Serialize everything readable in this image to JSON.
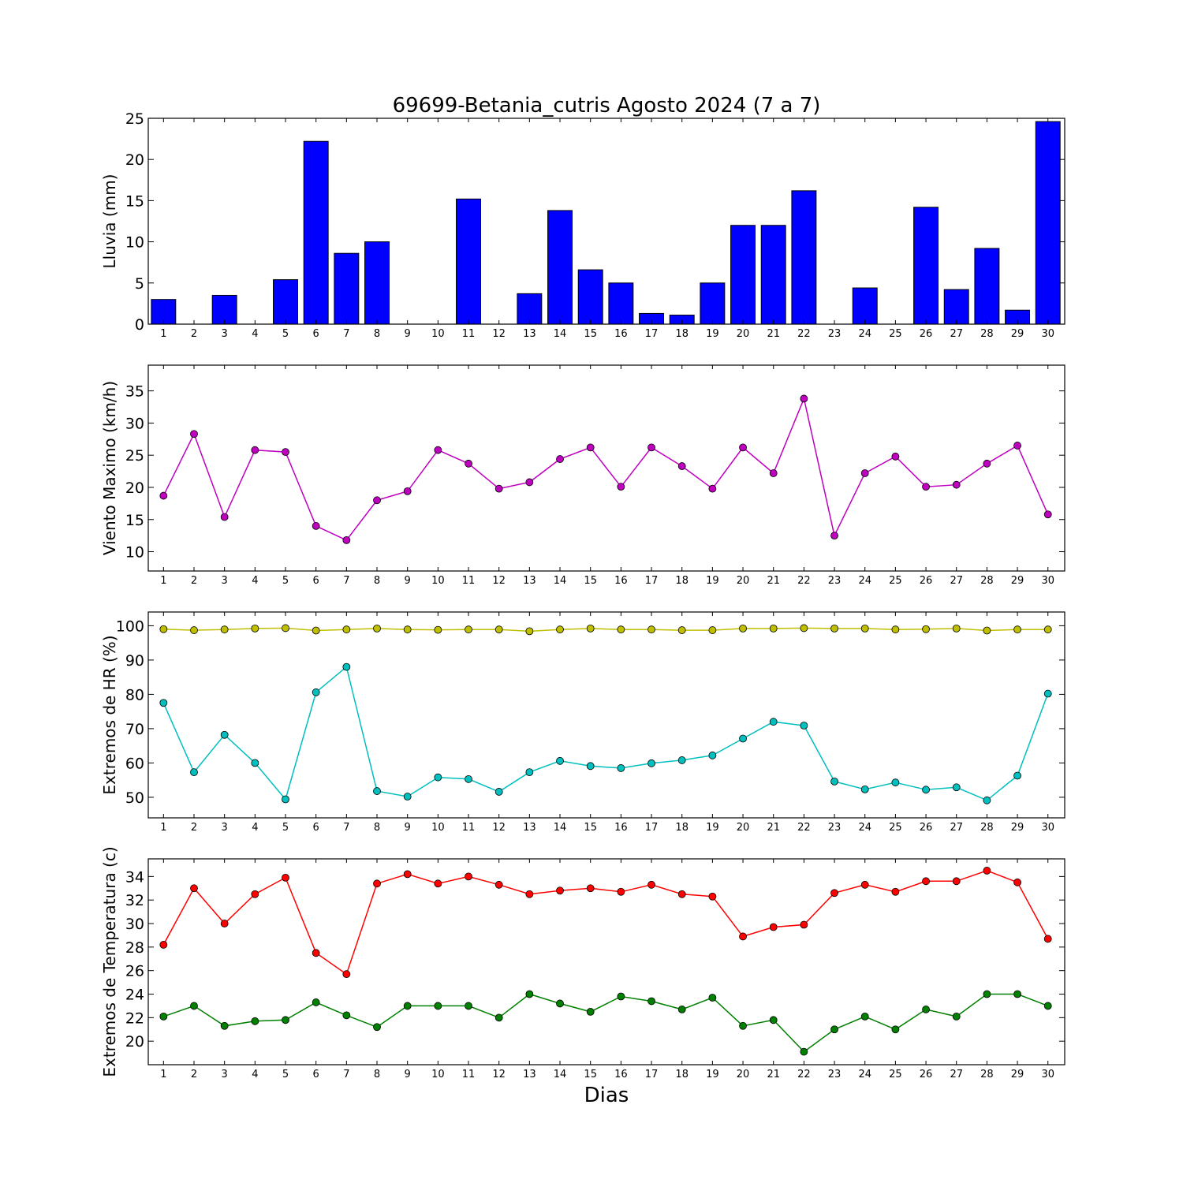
{
  "figure": {
    "title": "69699-Betania_cutris Agosto 2024  (7 a 7)",
    "xlabel": "Dias"
  },
  "chart_data": [
    {
      "type": "bar",
      "ylabel": "Lluvia (mm)",
      "x": [
        1,
        2,
        3,
        4,
        5,
        6,
        7,
        8,
        9,
        10,
        11,
        12,
        13,
        14,
        15,
        16,
        17,
        18,
        19,
        20,
        21,
        22,
        23,
        24,
        25,
        26,
        27,
        28,
        29,
        30
      ],
      "ylim": [
        0,
        25
      ],
      "yticks": [
        0,
        5,
        10,
        15,
        20,
        25
      ],
      "series": [
        {
          "color": "#0000ff",
          "values": [
            3.0,
            0,
            3.5,
            0,
            5.4,
            22.2,
            8.6,
            10.0,
            0,
            0,
            15.2,
            0,
            3.7,
            13.8,
            6.6,
            5.0,
            1.3,
            1.1,
            5.0,
            12.0,
            12.0,
            16.2,
            0,
            4.4,
            0,
            14.2,
            4.2,
            9.2,
            1.7,
            24.6
          ]
        }
      ]
    },
    {
      "type": "line",
      "ylabel": "Viento Maximo (km/h)",
      "x": [
        1,
        2,
        3,
        4,
        5,
        6,
        7,
        8,
        9,
        10,
        11,
        12,
        13,
        14,
        15,
        16,
        17,
        18,
        19,
        20,
        21,
        22,
        23,
        24,
        25,
        26,
        27,
        28,
        29,
        30
      ],
      "ylim": [
        7,
        39
      ],
      "yticks": [
        10,
        15,
        20,
        25,
        30,
        35
      ],
      "series": [
        {
          "color": "#bf00bf",
          "values": [
            18.7,
            28.3,
            15.4,
            25.8,
            25.5,
            14.0,
            11.8,
            18.0,
            19.4,
            25.8,
            23.7,
            19.8,
            20.8,
            24.4,
            26.2,
            20.1,
            26.2,
            23.3,
            19.8,
            26.2,
            22.2,
            33.8,
            12.5,
            22.2,
            24.8,
            20.1,
            20.4,
            23.7,
            26.5,
            15.8
          ]
        }
      ]
    },
    {
      "type": "line",
      "ylabel": "Extremos de HR (%)",
      "x": [
        1,
        2,
        3,
        4,
        5,
        6,
        7,
        8,
        9,
        10,
        11,
        12,
        13,
        14,
        15,
        16,
        17,
        18,
        19,
        20,
        21,
        22,
        23,
        24,
        25,
        26,
        27,
        28,
        29,
        30
      ],
      "ylim": [
        44,
        104
      ],
      "yticks": [
        50,
        60,
        70,
        80,
        90,
        100
      ],
      "series": [
        {
          "color": "#bfbf00",
          "values": [
            99.0,
            98.7,
            98.9,
            99.2,
            99.3,
            98.6,
            98.9,
            99.2,
            98.9,
            98.8,
            98.9,
            98.9,
            98.4,
            98.9,
            99.2,
            98.9,
            98.9,
            98.7,
            98.7,
            99.2,
            99.2,
            99.3,
            99.2,
            99.2,
            98.9,
            99.0,
            99.2,
            98.6,
            98.9,
            98.9
          ]
        },
        {
          "color": "#00bfbf",
          "values": [
            77.5,
            57.3,
            68.2,
            60.0,
            49.4,
            80.6,
            88.0,
            51.8,
            50.2,
            55.8,
            55.3,
            51.6,
            57.3,
            60.6,
            59.1,
            58.5,
            59.9,
            60.8,
            62.2,
            67.1,
            72.0,
            70.9,
            54.6,
            52.3,
            54.3,
            52.2,
            52.9,
            49.1,
            56.3,
            80.2
          ]
        }
      ]
    },
    {
      "type": "line",
      "ylabel": "Extremos de Temperatura (c)",
      "x": [
        1,
        2,
        3,
        4,
        5,
        6,
        7,
        8,
        9,
        10,
        11,
        12,
        13,
        14,
        15,
        16,
        17,
        18,
        19,
        20,
        21,
        22,
        23,
        24,
        25,
        26,
        27,
        28,
        29,
        30
      ],
      "ylim": [
        18,
        35.5
      ],
      "yticks": [
        20,
        22,
        24,
        26,
        28,
        30,
        32,
        34
      ],
      "series": [
        {
          "color": "#ff0000",
          "values": [
            28.2,
            33.0,
            30.0,
            32.5,
            33.9,
            27.5,
            25.7,
            33.4,
            34.2,
            33.4,
            34.0,
            33.3,
            32.5,
            32.8,
            33.0,
            32.7,
            33.3,
            32.5,
            32.3,
            28.9,
            29.7,
            29.9,
            32.6,
            33.3,
            32.7,
            33.6,
            33.6,
            34.5,
            33.5,
            28.7
          ]
        },
        {
          "color": "#008000",
          "values": [
            22.1,
            23.0,
            21.3,
            21.7,
            21.8,
            23.3,
            22.2,
            21.2,
            23.0,
            23.0,
            23.0,
            22.0,
            24.0,
            23.2,
            22.5,
            23.8,
            23.4,
            22.7,
            23.7,
            21.3,
            21.8,
            19.1,
            21.0,
            22.1,
            21.0,
            22.7,
            22.1,
            24.0,
            24.0,
            23.0
          ]
        }
      ]
    }
  ]
}
